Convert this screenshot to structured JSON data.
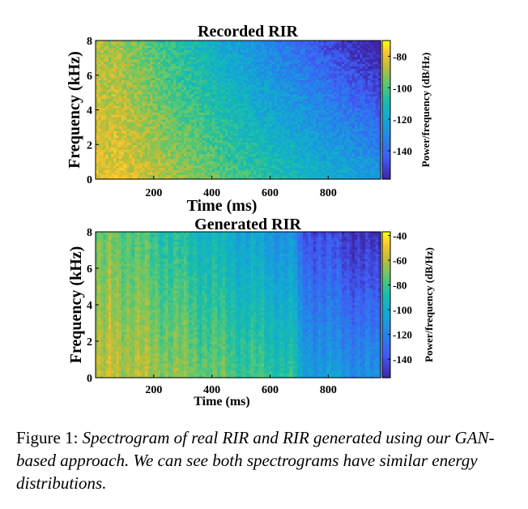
{
  "chart_data": [
    {
      "type": "heatmap",
      "title": "Recorded RIR",
      "xlabel": "Time (ms)",
      "ylabel": "Frequency (kHz)",
      "xlim": [
        0,
        980
      ],
      "ylim": [
        0,
        8
      ],
      "xticks": [
        "200",
        "400",
        "600",
        "800"
      ],
      "xtick_values": [
        200,
        400,
        600,
        800
      ],
      "yticks": [
        "0",
        "2",
        "4",
        "6",
        "8"
      ],
      "ytick_values": [
        0,
        2,
        4,
        6,
        8
      ],
      "colorbar": {
        "label": "Power/frequency (dB/Hz)",
        "range": [
          -158,
          -70
        ],
        "ticks": [
          "-80",
          "-100",
          "-120",
          "-140"
        ],
        "tick_values": [
          -80,
          -100,
          -120,
          -140
        ]
      },
      "colormap": "parula",
      "grid": false
    },
    {
      "type": "heatmap",
      "title": "Generated RIR",
      "xlabel": "Time (ms)",
      "ylabel": "Frequency (kHz)",
      "xlim": [
        0,
        980
      ],
      "ylim": [
        0,
        8
      ],
      "xticks": [
        "200",
        "400",
        "600",
        "800"
      ],
      "xtick_values": [
        200,
        400,
        600,
        800
      ],
      "yticks": [
        "0",
        "2",
        "4",
        "6",
        "8"
      ],
      "ytick_values": [
        0,
        2,
        4,
        6,
        8
      ],
      "colorbar": {
        "label": "Power/frequency (dB/Hz)",
        "range": [
          -155,
          -37
        ],
        "ticks": [
          "-40",
          "-60",
          "-80",
          "-100",
          "-120",
          "-140"
        ],
        "tick_values": [
          -40,
          -60,
          -80,
          -100,
          -120,
          -140
        ]
      },
      "colormap": "parula",
      "grid": false
    }
  ],
  "caption": {
    "lead": "Figure 1:",
    "text": "Spectrogram of real RIR and RIR generated using our GAN-based approach. We can see both spectrograms have similar energy distributions."
  },
  "colors": {
    "parula_low": "#3e26a8",
    "parula_mid": "#12bdb9",
    "parula_high": "#f9fb15"
  }
}
